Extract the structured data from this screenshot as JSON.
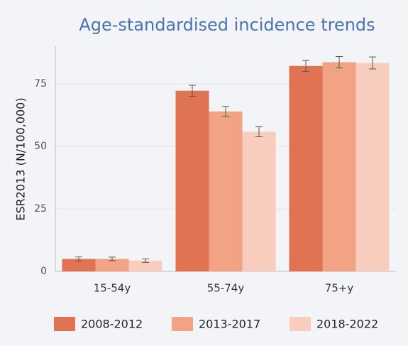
{
  "chart_data": {
    "type": "bar",
    "title": "Age-standardised incidence trends",
    "y_label": "ESR2013 (N/100,000)",
    "categories": [
      "15-54y",
      "55-74y",
      "75+y"
    ],
    "series": [
      {
        "name": "2008-2012",
        "color": "#e07352",
        "values": [
          5.0,
          72.2,
          82.1
        ],
        "errors": [
          0.8,
          2.2,
          2.2
        ]
      },
      {
        "name": "2013-2017",
        "color": "#f2a385",
        "values": [
          5.0,
          63.9,
          83.6
        ],
        "errors": [
          0.7,
          2.0,
          2.3
        ]
      },
      {
        "name": "2018-2022",
        "color": "#f9cdbd",
        "values": [
          4.3,
          55.8,
          83.3
        ],
        "errors": [
          0.7,
          2.0,
          2.4
        ]
      }
    ],
    "ylim": [
      0,
      90
    ],
    "yticks": [
      0,
      25,
      50,
      75
    ],
    "grid": true
  }
}
